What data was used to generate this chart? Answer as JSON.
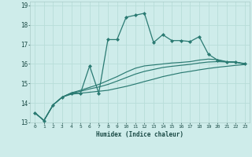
{
  "xlabel": "Humidex (Indice chaleur)",
  "background_color": "#ceecea",
  "grid_color": "#b8ddd9",
  "line_color": "#2a7a72",
  "xlim": [
    -0.5,
    23.5
  ],
  "ylim": [
    13,
    19.2
  ],
  "yticks": [
    13,
    14,
    15,
    16,
    17,
    18,
    19
  ],
  "xticks": [
    0,
    1,
    2,
    3,
    4,
    5,
    6,
    7,
    8,
    9,
    10,
    11,
    12,
    13,
    14,
    15,
    16,
    17,
    18,
    19,
    20,
    21,
    22,
    23
  ],
  "series": [
    {
      "x": [
        0,
        1,
        2,
        3,
        4,
        5,
        6,
        7,
        8,
        9,
        10,
        11,
        12,
        13,
        14,
        15,
        16,
        17,
        18,
        19,
        20,
        21,
        22,
        23
      ],
      "y": [
        13.5,
        13.1,
        13.9,
        14.3,
        14.5,
        14.5,
        15.9,
        14.5,
        17.25,
        17.25,
        18.4,
        18.5,
        18.6,
        17.1,
        17.5,
        17.2,
        17.2,
        17.15,
        17.4,
        16.5,
        16.2,
        16.1,
        16.1,
        16.0
      ],
      "marker": "D",
      "markersize": 2.0,
      "linewidth": 0.9,
      "zorder": 4
    },
    {
      "x": [
        0,
        1,
        2,
        3,
        4,
        5,
        6,
        7,
        8,
        9,
        10,
        11,
        12,
        13,
        14,
        15,
        16,
        17,
        18,
        19,
        20,
        21,
        22,
        23
      ],
      "y": [
        13.5,
        13.1,
        13.9,
        14.3,
        14.45,
        14.5,
        14.55,
        14.6,
        14.65,
        14.75,
        14.85,
        14.97,
        15.1,
        15.22,
        15.35,
        15.45,
        15.55,
        15.62,
        15.7,
        15.77,
        15.83,
        15.88,
        15.93,
        15.97
      ],
      "marker": null,
      "markersize": 0,
      "linewidth": 0.85,
      "zorder": 3
    },
    {
      "x": [
        0,
        1,
        2,
        3,
        4,
        5,
        6,
        7,
        8,
        9,
        10,
        11,
        12,
        13,
        14,
        15,
        16,
        17,
        18,
        19,
        20,
        21,
        22,
        23
      ],
      "y": [
        13.5,
        13.1,
        13.9,
        14.3,
        14.5,
        14.6,
        14.72,
        14.82,
        14.95,
        15.12,
        15.3,
        15.48,
        15.62,
        15.72,
        15.82,
        15.88,
        15.93,
        15.98,
        16.05,
        16.1,
        16.12,
        16.1,
        16.08,
        16.03
      ],
      "marker": null,
      "markersize": 0,
      "linewidth": 0.85,
      "zorder": 3
    },
    {
      "x": [
        0,
        1,
        2,
        3,
        4,
        5,
        6,
        7,
        8,
        9,
        10,
        11,
        12,
        13,
        14,
        15,
        16,
        17,
        18,
        19,
        20,
        21,
        22,
        23
      ],
      "y": [
        13.5,
        13.1,
        13.9,
        14.3,
        14.52,
        14.65,
        14.8,
        14.95,
        15.15,
        15.35,
        15.58,
        15.78,
        15.9,
        15.95,
        16.0,
        16.05,
        16.08,
        16.12,
        16.2,
        16.25,
        16.22,
        16.12,
        16.1,
        15.98
      ],
      "marker": null,
      "markersize": 0,
      "linewidth": 0.85,
      "zorder": 3
    }
  ]
}
